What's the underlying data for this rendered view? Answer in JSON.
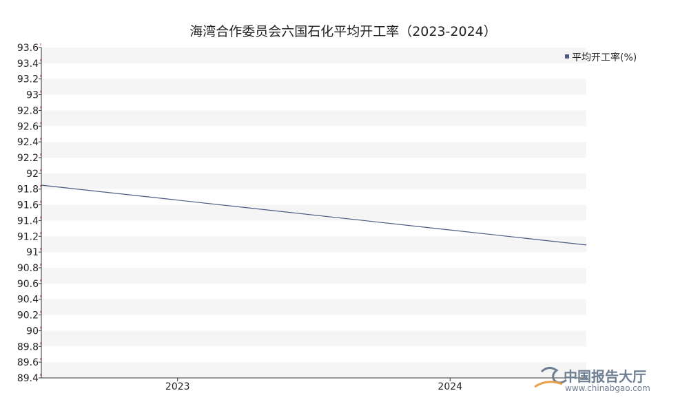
{
  "chart_data": {
    "type": "line",
    "title": "海湾合作委员会六国石化平均开工率（2023-2024）",
    "categories": [
      "2023",
      "2024"
    ],
    "series": [
      {
        "name": "平均开工率(%)",
        "values": [
          91.66,
          91.28
        ],
        "color": "#4a5a7e"
      }
    ],
    "ylim": [
      89.4,
      93.6
    ],
    "yticks": [
      "93.6",
      "93.4",
      "93.2",
      "93",
      "92.8",
      "92.6",
      "92.4",
      "92.2",
      "92",
      "91.8",
      "91.6",
      "91.4",
      "91.2",
      "91",
      "90.8",
      "90.6",
      "90.4",
      "90.2",
      "90",
      "89.8",
      "89.6",
      "89.4"
    ],
    "grid": "alternating horizontal bands",
    "legend_position": "top-right"
  },
  "watermark": {
    "name": "中国报告大厅",
    "url": "www.chinabgao.com",
    "color": "#6f7f93",
    "accent": "#e8a04a"
  }
}
